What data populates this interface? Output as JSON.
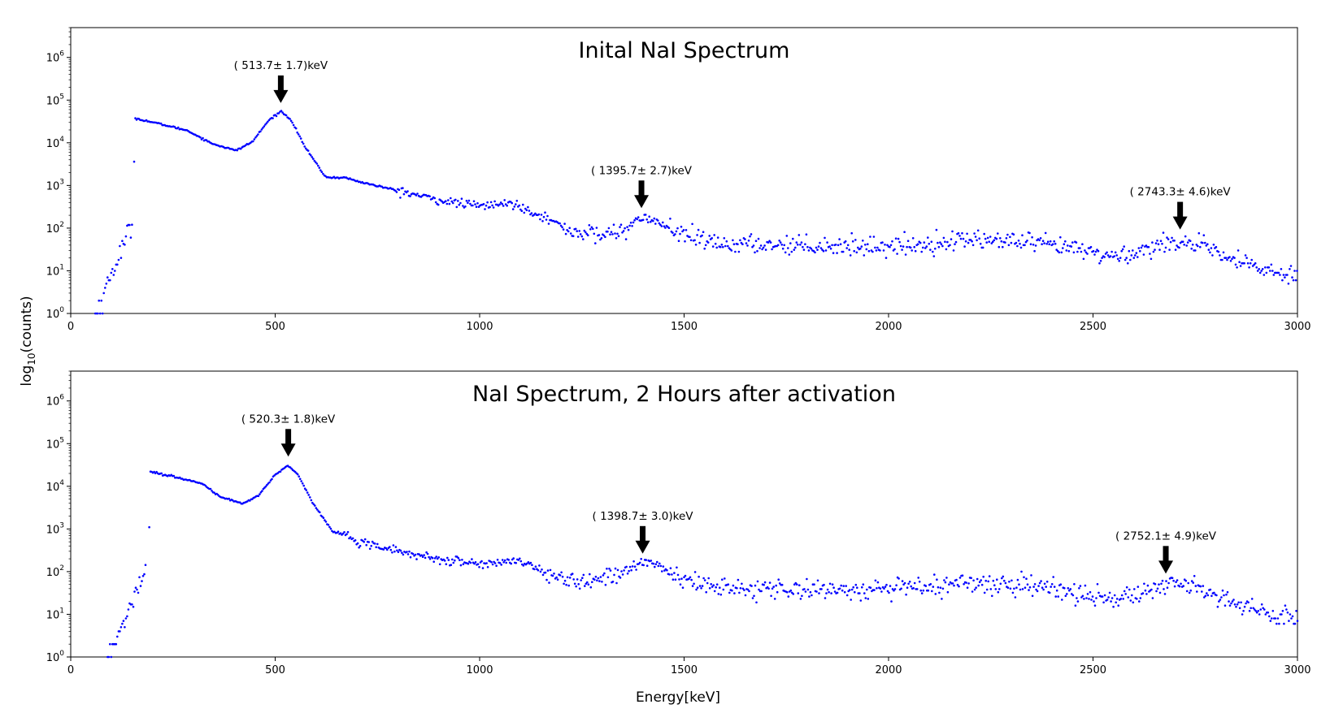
{
  "figure": {
    "ylabel_prefix": "log",
    "ylabel_sub": "10",
    "ylabel_suffix": "(counts)",
    "xlabel": "Energy[keV]",
    "marker_color": "#0000ff"
  },
  "chart_data": [
    {
      "type": "scatter",
      "title": "Inital NaI Spectrum",
      "xlim": [
        0,
        3000
      ],
      "ylim": [
        1,
        5000000
      ],
      "y_scale": "log",
      "x_ticks": [
        0,
        500,
        1000,
        1500,
        2000,
        2500,
        3000
      ],
      "y_ticks": [
        {
          "base": "10",
          "exp": "0",
          "value": 1
        },
        {
          "base": "10",
          "exp": "1",
          "value": 10
        },
        {
          "base": "10",
          "exp": "2",
          "value": 100
        },
        {
          "base": "10",
          "exp": "3",
          "value": 1000
        },
        {
          "base": "10",
          "exp": "4",
          "value": 10000
        },
        {
          "base": "10",
          "exp": "5",
          "value": 100000
        },
        {
          "base": "10",
          "exp": "6",
          "value": 1000000
        }
      ],
      "annotations": [
        {
          "text": "( 513.7± 1.7)keV",
          "x": 513.7,
          "y": 55000
        },
        {
          "text": "( 1395.7± 2.7)keV",
          "x": 1395.7,
          "y": 190
        },
        {
          "text": "( 2743.3± 4.6)keV",
          "x": 2713,
          "y": 60
        }
      ],
      "spectrum": {
        "cutoff_start": 60,
        "cutoff_end": 150,
        "step_energy": 155,
        "step_counts": 3600,
        "onset_counts": 37000,
        "photopeak_center": 513.7,
        "photopeak_counts": 55000
      }
    },
    {
      "type": "scatter",
      "title": "NaI Spectrum, 2 Hours after activation",
      "xlim": [
        0,
        3000
      ],
      "ylim": [
        1,
        5000000
      ],
      "y_scale": "log",
      "x_ticks": [
        0,
        500,
        1000,
        1500,
        2000,
        2500,
        3000
      ],
      "y_ticks": [
        {
          "base": "10",
          "exp": "0",
          "value": 1
        },
        {
          "base": "10",
          "exp": "1",
          "value": 10
        },
        {
          "base": "10",
          "exp": "2",
          "value": 100
        },
        {
          "base": "10",
          "exp": "3",
          "value": 1000
        },
        {
          "base": "10",
          "exp": "4",
          "value": 10000
        },
        {
          "base": "10",
          "exp": "5",
          "value": 100000
        },
        {
          "base": "10",
          "exp": "6",
          "value": 1000000
        }
      ],
      "annotations": [
        {
          "text": "( 520.3± 1.8)keV",
          "x": 532,
          "y": 32000
        },
        {
          "text": "( 1398.7± 3.0)keV",
          "x": 1398.7,
          "y": 170
        },
        {
          "text": "( 2752.1± 4.9)keV",
          "x": 2678,
          "y": 58
        }
      ],
      "spectrum": {
        "cutoff_start": 90,
        "cutoff_end": 185,
        "step_energy": 192,
        "step_counts": 1100,
        "onset_counts": 22000,
        "photopeak_center": 530,
        "photopeak_counts": 31000
      }
    }
  ]
}
